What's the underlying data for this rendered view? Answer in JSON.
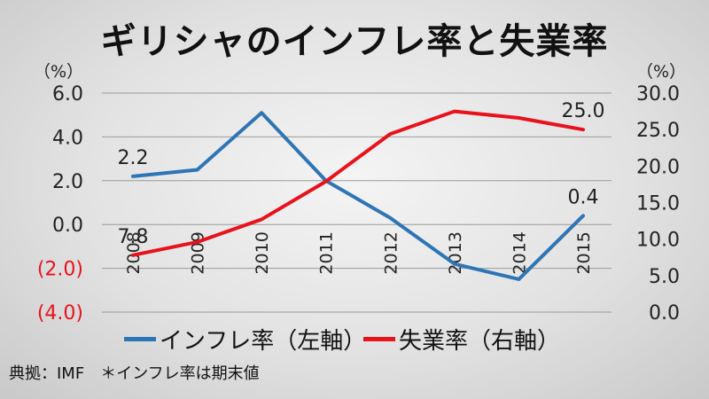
{
  "title": "ギリシャのインフレ率と失業率",
  "units": {
    "left": "（%）",
    "right": "（%）"
  },
  "source": "典拠：IMF　＊インフレ率は期末値",
  "colors": {
    "inflation": "#2e75b6",
    "unemployment": "#e8121b",
    "negative_tick": "#e8121b",
    "grid": "#9a9a9a",
    "text": "#222222"
  },
  "chart_data": {
    "type": "line",
    "title": "ギリシャのインフレ率と失業率",
    "x": [
      "2008",
      "2009",
      "2010",
      "2011",
      "2012",
      "2013",
      "2014",
      "2015"
    ],
    "y_left": {
      "ylim": [
        -4.0,
        6.0
      ],
      "ticks": [
        "6.0",
        "4.0",
        "2.0",
        "0.0",
        "(2.0)",
        "(4.0)"
      ],
      "unit": "（%）"
    },
    "y_right": {
      "ylim": [
        0.0,
        30.0
      ],
      "ticks": [
        "30.0",
        "25.0",
        "20.0",
        "15.0",
        "10.0",
        "5.0",
        "0.0"
      ],
      "unit": "（%）"
    },
    "series": [
      {
        "name": "インフレ率（左軸）",
        "axis": "left",
        "values": [
          2.2,
          2.5,
          5.1,
          2.0,
          0.3,
          -1.8,
          -2.5,
          0.4
        ]
      },
      {
        "name": "失業率（右軸）",
        "axis": "right",
        "values": [
          7.8,
          9.6,
          12.7,
          17.9,
          24.4,
          27.5,
          26.6,
          25.0
        ]
      }
    ],
    "data_labels": [
      {
        "series": 0,
        "index": 0,
        "text": "2.2"
      },
      {
        "series": 0,
        "index": 7,
        "text": "0.4"
      },
      {
        "series": 1,
        "index": 0,
        "text": "7.8"
      },
      {
        "series": 1,
        "index": 7,
        "text": "25.0"
      }
    ],
    "legend": "bottom",
    "grid": true
  }
}
